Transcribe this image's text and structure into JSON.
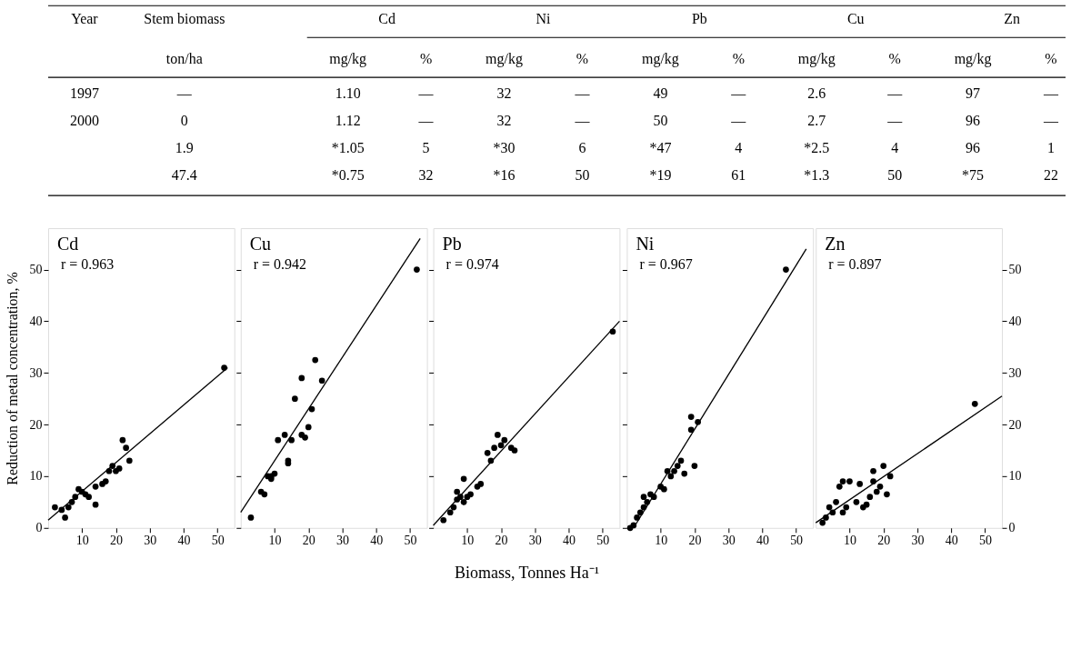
{
  "chart_data": [
    {
      "type": "other",
      "annotations": [
        "Year\tStem biomass\tCd\t\tNi\t\tPb\t\tCu\t\tZn\t",
        "\tton/ha\tmg/kg\t%\tmg/kg\t%\tmg/kg\t%\tmg/kg\t%\tmg/kg\t%",
        "1997\t—\t1.10\t—\t32\t—\t49\t—\t2.6\t—\t97\t—",
        "2000\t0\t1.12\t—\t32\t—\t50\t—\t2.7\t—\t96\t—",
        "\t1.9\t*1.05\t5\t*30\t6\t*47\t4\t*2.5\t4\t96\t1",
        "\t47.4\t*0.75\t32\t*16\t50\t*19\t61\t*1.3\t50\t*75\t22"
      ]
    },
    {
      "type": "scatter",
      "title": "Cd",
      "annotations": [
        "r = 0.963"
      ],
      "ylabel": "Reduction of metal concentration, %",
      "series": [
        {
          "type": "scatter",
          "marker": "circle",
          "color": "#000000",
          "x": [
            2,
            4,
            5,
            6,
            7,
            8,
            9,
            10,
            11,
            12,
            14,
            14,
            16,
            17,
            18,
            19,
            20,
            21,
            22,
            23,
            24,
            52
          ],
          "values": [
            4,
            3.5,
            2,
            4,
            5,
            6,
            7.5,
            7,
            6.5,
            6,
            4.5,
            8,
            8.5,
            9,
            11,
            12,
            11,
            11.5,
            17,
            15.5,
            13,
            31
          ]
        },
        {
          "type": "line",
          "marker": "none",
          "line_style": "solid",
          "color": "#000000",
          "x": [
            0,
            53
          ],
          "values": [
            1.5,
            31
          ]
        }
      ],
      "xlim": [
        0,
        55
      ],
      "xticks": [
        10,
        20,
        30,
        40,
        50
      ],
      "ylim": [
        0,
        58
      ],
      "yticks": [
        0,
        10,
        20,
        30,
        40,
        50
      ]
    },
    {
      "type": "scatter",
      "title": "Cu",
      "annotations": [
        "r = 0.942"
      ],
      "tick_labels": "x",
      "series": [
        {
          "type": "scatter",
          "marker": "circle",
          "color": "#000000",
          "x": [
            3,
            6,
            7,
            8,
            9,
            9,
            10,
            11,
            13,
            14,
            14,
            15,
            16,
            18,
            18,
            19,
            20,
            21,
            22,
            24,
            52
          ],
          "values": [
            2,
            7,
            6.5,
            10,
            9.5,
            10,
            10.5,
            17,
            18,
            12.5,
            13,
            17,
            25,
            29,
            18,
            17.5,
            19.5,
            23,
            32.5,
            28.5,
            50
          ]
        },
        {
          "type": "line",
          "marker": "none",
          "line_style": "solid",
          "color": "#000000",
          "x": [
            0,
            53
          ],
          "values": [
            3,
            56
          ]
        }
      ],
      "xlim": [
        0,
        55
      ],
      "xticks": [
        10,
        20,
        30,
        40,
        50
      ],
      "ylim": [
        0,
        58
      ],
      "yticks": [
        0,
        10,
        20,
        30,
        40,
        50
      ]
    },
    {
      "type": "scatter",
      "title": "Pb",
      "annotations": [
        "r = 0.974"
      ],
      "xlabel": "Biomass, Tonnes Ha⁻¹",
      "tick_labels": "x",
      "series": [
        {
          "type": "scatter",
          "marker": "circle",
          "color": "#000000",
          "x": [
            3,
            5,
            6,
            7,
            7,
            8,
            9,
            9,
            10,
            11,
            13,
            14,
            16,
            17,
            18,
            19,
            20,
            21,
            23,
            24,
            53
          ],
          "values": [
            1.5,
            3,
            4,
            5.5,
            7,
            6,
            9.5,
            5,
            6,
            6.5,
            8,
            8.5,
            14.5,
            13,
            15.5,
            18,
            16,
            17,
            15.5,
            15,
            38
          ]
        },
        {
          "type": "line",
          "marker": "none",
          "line_style": "solid",
          "color": "#000000",
          "x": [
            0,
            55
          ],
          "values": [
            0.5,
            40
          ]
        }
      ],
      "xlim": [
        0,
        55
      ],
      "xticks": [
        10,
        20,
        30,
        40,
        50
      ],
      "ylim": [
        0,
        58
      ],
      "yticks": [
        0,
        10,
        20,
        30,
        40,
        50
      ]
    },
    {
      "type": "scatter",
      "title": "Ni",
      "annotations": [
        "r = 0.967"
      ],
      "tick_labels": "x",
      "series": [
        {
          "type": "scatter",
          "marker": "circle",
          "color": "#000000",
          "x": [
            1,
            2,
            3,
            4,
            5,
            5,
            6,
            7,
            8,
            10,
            11,
            12,
            13,
            14,
            15,
            16,
            17,
            19,
            19,
            20,
            21,
            47
          ],
          "values": [
            0,
            0.5,
            2,
            3,
            4,
            6,
            5,
            6.5,
            6,
            8,
            7.5,
            11,
            10,
            11,
            12,
            13,
            10.5,
            19,
            21.5,
            12,
            20.5,
            50
          ]
        },
        {
          "type": "line",
          "marker": "none",
          "line_style": "solid",
          "color": "#000000",
          "x": [
            2,
            53
          ],
          "values": [
            0,
            54
          ]
        }
      ],
      "xlim": [
        0,
        55
      ],
      "xticks": [
        10,
        20,
        30,
        40,
        50
      ],
      "ylim": [
        0,
        58
      ],
      "yticks": [
        0,
        10,
        20,
        30,
        40,
        50
      ]
    },
    {
      "type": "scatter",
      "title": "Zn",
      "annotations": [
        "r = 0.897"
      ],
      "series": [
        {
          "type": "scatter",
          "marker": "circle",
          "color": "#000000",
          "x": [
            2,
            3,
            4,
            5,
            6,
            7,
            8,
            8,
            9,
            10,
            12,
            13,
            14,
            15,
            16,
            17,
            17,
            18,
            19,
            20,
            21,
            22,
            47
          ],
          "values": [
            1,
            2,
            4,
            3,
            5,
            8,
            9,
            3,
            4,
            9,
            5,
            8.5,
            4,
            4.5,
            6,
            9,
            11,
            7,
            8,
            12,
            6.5,
            10,
            24
          ]
        },
        {
          "type": "line",
          "marker": "none",
          "line_style": "solid",
          "color": "#000000",
          "x": [
            0,
            55
          ],
          "values": [
            1,
            25.5
          ]
        }
      ],
      "xlim": [
        0,
        55
      ],
      "xticks": [
        10,
        20,
        30,
        40,
        50
      ],
      "ylim": [
        0,
        58
      ],
      "yticks": [
        0,
        10,
        20,
        30,
        40,
        50
      ]
    }
  ]
}
